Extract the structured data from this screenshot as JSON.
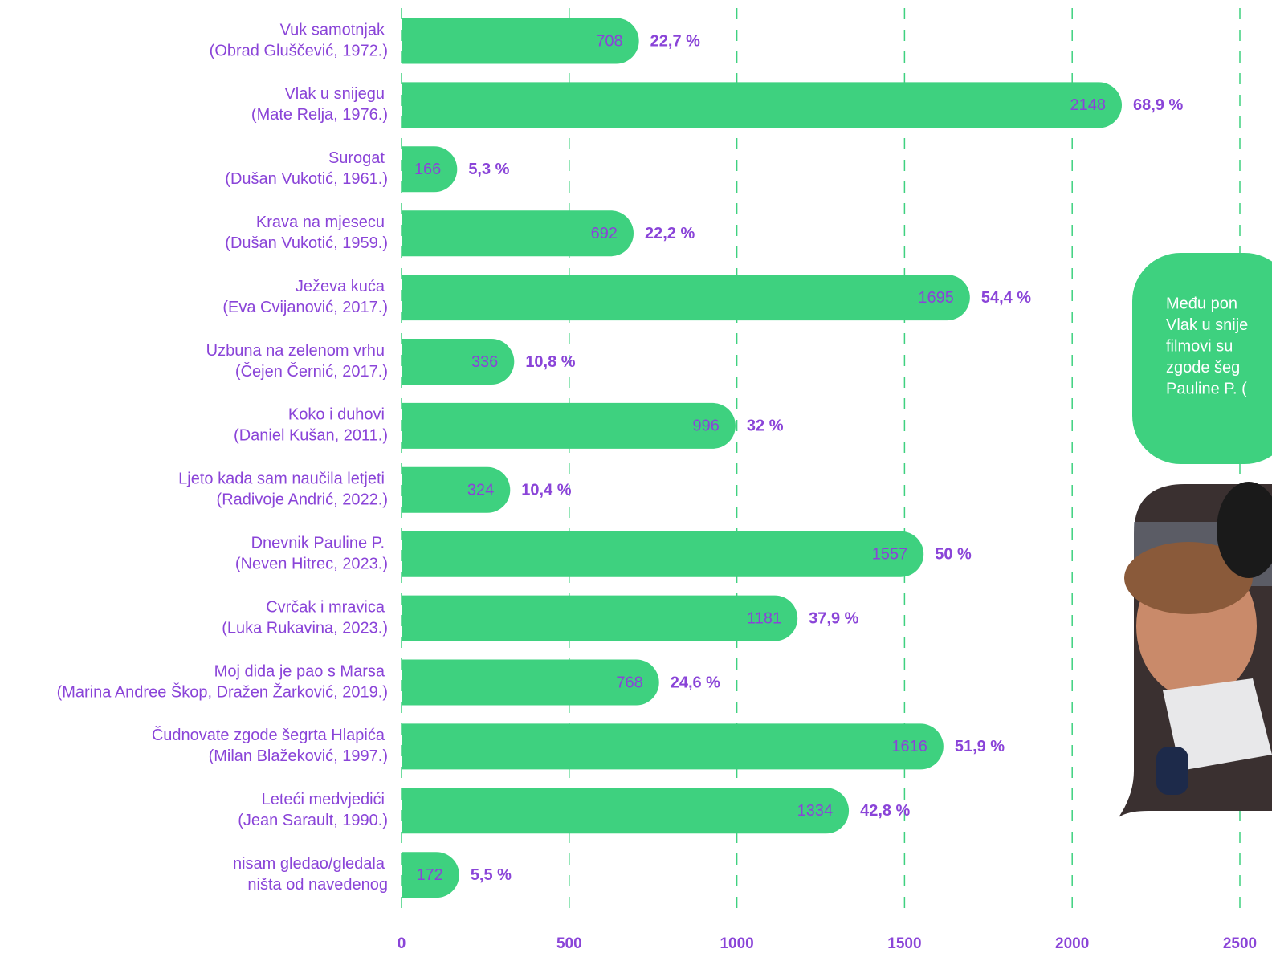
{
  "chart_data": {
    "type": "bar",
    "categories": [
      [
        "Vuk samotnjak",
        "(Obrad Gluščević, 1972.)"
      ],
      [
        "Vlak u snijegu",
        "(Mate Relja, 1976.)"
      ],
      [
        "Surogat",
        "(Dušan Vukotić, 1961.)"
      ],
      [
        "Krava na mjesecu",
        "(Dušan Vukotić, 1959.)"
      ],
      [
        "Ježeva kuća",
        "(Eva Cvijanović, 2017.)"
      ],
      [
        "Uzbuna na zelenom vrhu",
        "(Čejen Černić, 2017.)"
      ],
      [
        "Koko i duhovi",
        "(Daniel Kušan, 2011.)"
      ],
      [
        "Ljeto kada sam naučila letjeti",
        "(Radivoje Andrić, 2022.)"
      ],
      [
        "Dnevnik Pauline P.",
        "(Neven Hitrec, 2023.)"
      ],
      [
        "Cvrčak i mravica",
        "(Luka Rukavina, 2023.)"
      ],
      [
        "Moj dida je pao s Marsa",
        "(Marina Andree Škop, Dražen Žarković, 2019.)"
      ],
      [
        "Čudnovate zgode šegrta Hlapića",
        "(Milan Blažeković, 1997.)"
      ],
      [
        "Leteći medvjedići",
        "(Jean Sarault, 1990.)"
      ],
      [
        "nisam gledao/gledala",
        "ništa od navedenog"
      ]
    ],
    "values": [
      708,
      2148,
      166,
      692,
      1695,
      336,
      996,
      324,
      1557,
      1181,
      768,
      1616,
      1334,
      172
    ],
    "share_labels": [
      "22,7 %",
      "68,9 %",
      "5,3 %",
      "22,2 %",
      "54,4 %",
      "10,8 %",
      "32 %",
      "10,4 %",
      "50 %",
      "37,9 %",
      "24,6 %",
      "51,9 %",
      "42,8 %",
      "5,5 %"
    ],
    "color": "#3ed17f",
    "label_color": "#8a44d8",
    "xlim": [
      0,
      2500
    ],
    "xticks": [
      0,
      500,
      1000,
      1500,
      2000,
      2500
    ],
    "grid": true
  },
  "callout": {
    "lines": [
      "Među pon",
      "Vlak u snije",
      "filmovi su",
      "zgode šeg",
      "Pauline P. ("
    ]
  }
}
